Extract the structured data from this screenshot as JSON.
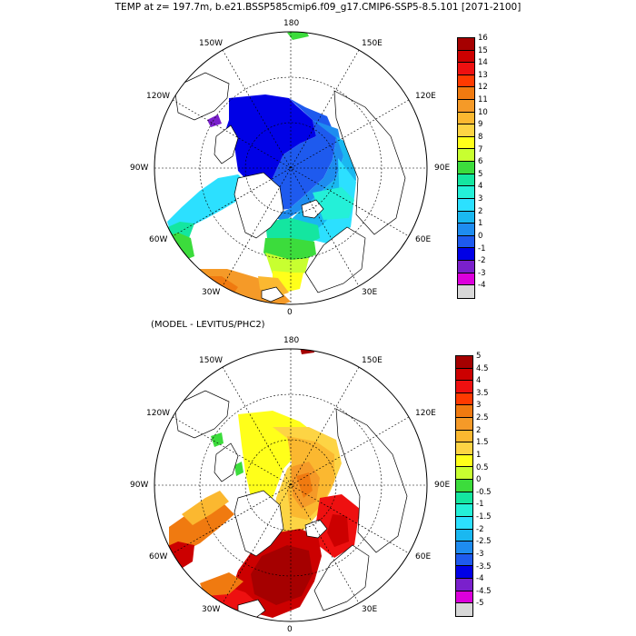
{
  "title": "TEMP at z= 197.7m, b.e21.BSSP585cmip6.f09_g17.CMIP6-SSP5-8.5.101 [2071-2100]",
  "subtitle": "(MODEL - LEVITUS/PHC2)",
  "maps": [
    {
      "name": "temperature-map",
      "projection": "north polar stereographic",
      "lon_labels": [
        "180",
        "150E",
        "120E",
        "90E",
        "60E",
        "30E",
        "0",
        "30W",
        "60W",
        "90W",
        "120W",
        "150W"
      ],
      "colorbar": {
        "labels": [
          "16",
          "15",
          "14",
          "13",
          "12",
          "11",
          "10",
          "9",
          "8",
          "7",
          "6",
          "5",
          "4",
          "3",
          "2",
          "1",
          "0",
          "-1",
          "-2",
          "-3",
          "-4"
        ],
        "colors": [
          "#a50000",
          "#cc0000",
          "#ee1010",
          "#ff3a00",
          "#f07a10",
          "#f59a28",
          "#fbb830",
          "#fdd444",
          "#ffff1a",
          "#c8ff30",
          "#3cdc3c",
          "#14e6a0",
          "#24f0d8",
          "#2ce0ff",
          "#1ab8f0",
          "#1e8cf0",
          "#1e5aee",
          "#0000e6",
          "#7a20cc",
          "#dc00dc",
          "#d8d8d8",
          "#bdbdbd",
          "#808080"
        ]
      }
    },
    {
      "name": "difference-map",
      "projection": "north polar stereographic",
      "lon_labels": [
        "180",
        "150E",
        "120E",
        "90E",
        "60E",
        "30E",
        "0",
        "30W",
        "60W",
        "90W",
        "120W",
        "150W"
      ],
      "colorbar": {
        "labels": [
          "5",
          "4.5",
          "4",
          "3.5",
          "3",
          "2.5",
          "2",
          "1.5",
          "1",
          "0.5",
          "0",
          "-0.5",
          "-1",
          "-1.5",
          "-2",
          "-2.5",
          "-3",
          "-3.5",
          "-4",
          "-4.5",
          "-5"
        ],
        "colors": [
          "#a50000",
          "#cc0000",
          "#ee1010",
          "#ff3a00",
          "#f07a10",
          "#f59a28",
          "#fbb830",
          "#fdd444",
          "#ffff1a",
          "#c8ff30",
          "#3cdc3c",
          "#14e6a0",
          "#24f0d8",
          "#2ce0ff",
          "#1ab8f0",
          "#1e8cf0",
          "#1e5aee",
          "#0000e6",
          "#7a20cc",
          "#dc00dc",
          "#d8d8d8",
          "#bdbdbd",
          "#808080"
        ]
      }
    }
  ]
}
